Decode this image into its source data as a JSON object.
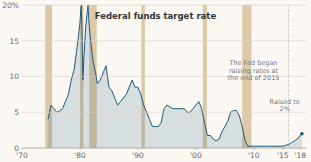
{
  "chart_data": {
    "type": "area",
    "title": "Federal funds target rate",
    "x": [
      1974.5,
      1975.0,
      1975.5,
      1976.0,
      1976.5,
      1977.0,
      1977.5,
      1978.0,
      1978.5,
      1979.0,
      1979.5,
      1980.0,
      1980.15,
      1980.25,
      1980.35,
      1980.5,
      1980.7,
      1981.0,
      1981.25,
      1981.4,
      1981.6,
      1981.9,
      1982.3,
      1982.7,
      1983.0,
      1983.5,
      1984.0,
      1984.5,
      1985.0,
      1985.5,
      1986.0,
      1986.5,
      1987.0,
      1987.5,
      1988.0,
      1988.5,
      1989.0,
      1989.5,
      1990.0,
      1990.5,
      1991.0,
      1991.5,
      1992.0,
      1992.5,
      1993.0,
      1993.5,
      1994.0,
      1994.5,
      1995.0,
      1995.5,
      1996.0,
      1996.5,
      1997.0,
      1997.5,
      1998.0,
      1998.5,
      1999.0,
      1999.5,
      2000.0,
      2000.5,
      2001.0,
      2001.5,
      2002.0,
      2002.5,
      2003.0,
      2003.5,
      2004.0,
      2004.5,
      2005.0,
      2005.5,
      2006.0,
      2006.5,
      2007.0,
      2007.5,
      2008.0,
      2008.5,
      2009.0,
      2009.5,
      2010.0,
      2011.0,
      2012.0,
      2013.0,
      2014.0,
      2015.0,
      2015.5,
      2016.0,
      2016.5,
      2017.0,
      2017.5,
      2018.0,
      2018.3
    ],
    "values": [
      4.0,
      6.0,
      5.5,
      5.0,
      5.2,
      5.5,
      6.5,
      7.5,
      9.5,
      11.0,
      14.0,
      17.5,
      19.5,
      20.0,
      16.5,
      9.5,
      13.0,
      17.0,
      19.0,
      20.0,
      17.0,
      14.5,
      12.0,
      10.5,
      9.0,
      9.5,
      10.5,
      11.5,
      8.5,
      8.0,
      7.0,
      6.0,
      6.5,
      7.0,
      7.5,
      8.5,
      9.5,
      8.5,
      8.5,
      7.5,
      6.0,
      5.0,
      4.0,
      3.0,
      3.0,
      3.0,
      3.5,
      5.5,
      6.0,
      5.75,
      5.5,
      5.5,
      5.5,
      5.5,
      5.5,
      5.0,
      5.0,
      5.5,
      6.0,
      6.5,
      5.5,
      3.5,
      1.75,
      1.75,
      1.25,
      1.0,
      1.25,
      2.25,
      3.0,
      3.75,
      5.0,
      5.25,
      5.25,
      4.5,
      3.0,
      1.0,
      0.25,
      0.25,
      0.25,
      0.25,
      0.25,
      0.25,
      0.25,
      0.25,
      0.375,
      0.5,
      0.75,
      1.0,
      1.25,
      1.75,
      2.0
    ],
    "color": "#1e5a7a",
    "xlim": [
      1970,
      2019.0
    ],
    "xticks": [
      {
        "value": 1970,
        "label": "'70"
      },
      {
        "value": 1980,
        "label": "'80"
      },
      {
        "value": 1990,
        "label": "'90"
      },
      {
        "value": 2000,
        "label": "'00"
      },
      {
        "value": 2010,
        "label": "'10"
      },
      {
        "value": 2015,
        "label": "'15"
      },
      {
        "value": 2018,
        "label": "'18"
      }
    ],
    "ylim": [
      0,
      20
    ],
    "yticks": [
      0,
      5,
      10,
      15,
      {
        "value": 20,
        "label": "20%"
      }
    ],
    "grid": true,
    "recessions": {
      "color": "#ddc9a8",
      "ranges": [
        [
          1974.0,
          1975.2
        ],
        [
          1980.0,
          1980.6
        ],
        [
          1981.6,
          1982.9
        ],
        [
          1990.6,
          1991.2
        ],
        [
          2001.2,
          2001.9
        ],
        [
          2008.0,
          2009.6
        ]
      ]
    },
    "reference_line_x": 2016.0,
    "annotations": [
      {
        "text": "The Fed began\nraising rates at\nthe end of 2015"
      },
      {
        "text": "Raised to\n2%"
      }
    ]
  }
}
